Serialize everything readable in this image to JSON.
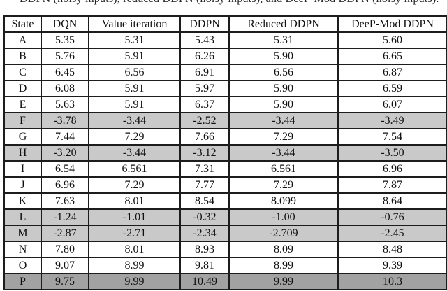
{
  "caption": "DDPN (noisy inputs), reduced DDPN (noisy inputs), and DeeP-Mod DDPN (noisy inputs).",
  "colors": {
    "light_row_shade": "#c9c9c9",
    "dark_row_shade": "#a2a2a2"
  },
  "table": {
    "headers": [
      "State",
      "DQN",
      "Value iteration",
      "DDPN",
      "Reduced DDPN",
      "DeeP-Mod DDPN"
    ],
    "rows": [
      {
        "state": "A",
        "values": [
          "5.35",
          "5.31",
          "5.43",
          "5.31",
          "5.60"
        ],
        "shade": "none"
      },
      {
        "state": "B",
        "values": [
          "5.76",
          "5.91",
          "6.26",
          "5.90",
          "6.65"
        ],
        "shade": "none"
      },
      {
        "state": "C",
        "values": [
          "6.45",
          "6.56",
          "6.91",
          "6.56",
          "6.87"
        ],
        "shade": "none"
      },
      {
        "state": "D",
        "values": [
          "6.08",
          "5.91",
          "5.97",
          "5.90",
          "6.59"
        ],
        "shade": "none"
      },
      {
        "state": "E",
        "values": [
          "5.63",
          "5.91",
          "6.37",
          "5.90",
          "6.07"
        ],
        "shade": "none"
      },
      {
        "state": "F",
        "values": [
          "-3.78",
          "-3.44",
          "-2.52",
          "-3.44",
          "-3.49"
        ],
        "shade": "light"
      },
      {
        "state": "G",
        "values": [
          "7.44",
          "7.29",
          "7.66",
          "7.29",
          "7.54"
        ],
        "shade": "none"
      },
      {
        "state": "H",
        "values": [
          "-3.20",
          "-3.44",
          "-3.12",
          "-3.44",
          "-3.50"
        ],
        "shade": "light"
      },
      {
        "state": "I",
        "values": [
          "6.54",
          "6.561",
          "7.31",
          "6.561",
          "6.96"
        ],
        "shade": "none"
      },
      {
        "state": "J",
        "values": [
          "6.96",
          "7.29",
          "7.77",
          "7.29",
          "7.87"
        ],
        "shade": "none"
      },
      {
        "state": "K",
        "values": [
          "7.63",
          "8.01",
          "8.54",
          "8.099",
          "8.64"
        ],
        "shade": "none"
      },
      {
        "state": "L",
        "values": [
          "-1.24",
          "-1.01",
          "-0.32",
          "-1.00",
          "-0.76"
        ],
        "shade": "light"
      },
      {
        "state": "M",
        "values": [
          "-2.87",
          "-2.71",
          "-2.34",
          "-2.709",
          "-2.45"
        ],
        "shade": "light"
      },
      {
        "state": "N",
        "values": [
          "7.80",
          "8.01",
          "8.93",
          "8.09",
          "8.48"
        ],
        "shade": "none"
      },
      {
        "state": "O",
        "values": [
          "9.07",
          "8.99",
          "9.81",
          "8.99",
          "9.39"
        ],
        "shade": "none"
      },
      {
        "state": "P",
        "values": [
          "9.75",
          "9.99",
          "10.49",
          "9.99",
          "10.3"
        ],
        "shade": "dark"
      }
    ]
  }
}
